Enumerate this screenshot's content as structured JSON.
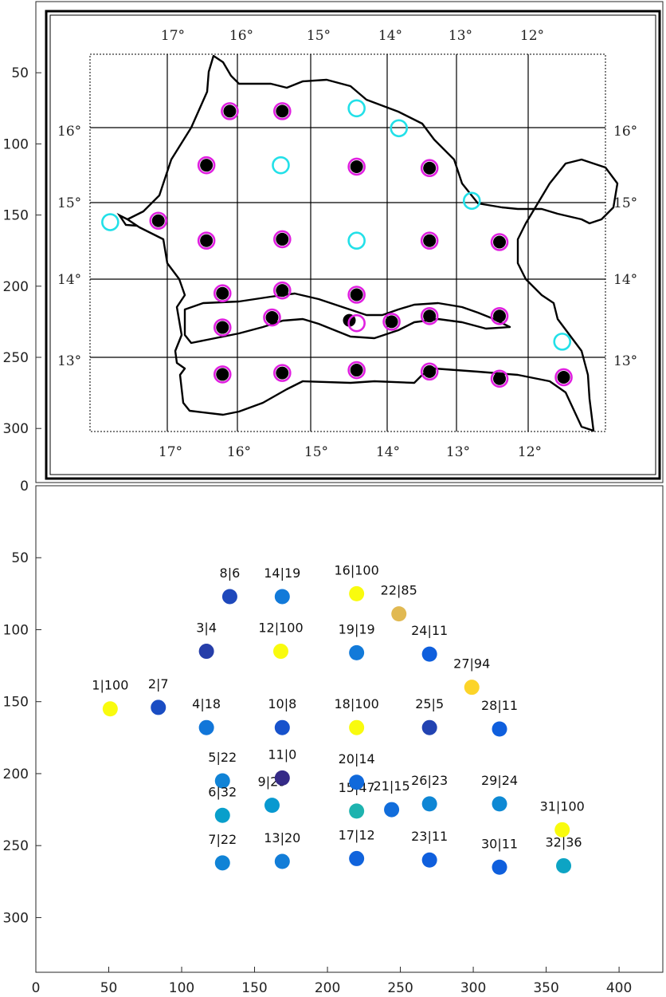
{
  "chart_data": [
    {
      "type": "scatter",
      "panel": "map-overlay",
      "xlim": [
        0,
        430
      ],
      "ylim": [
        0,
        338
      ],
      "y_reversed": true,
      "grid": false,
      "background": "map of Senegal with lat/lon graticule",
      "map_top_labels": [
        "17°",
        "16°",
        "15°",
        "14°",
        "13°",
        "12°"
      ],
      "map_bottom_labels": [
        "17°",
        "16°",
        "15°",
        "14°",
        "13°",
        "12°"
      ],
      "map_left_labels": [
        "16°",
        "15°",
        "14°",
        "13°"
      ],
      "map_right_labels": [
        "16°",
        "15°",
        "14°",
        "13°"
      ],
      "yticks": [
        50,
        100,
        150,
        200,
        250,
        300
      ],
      "colors": {
        "black_marker": "#000000",
        "magenta_ring": "#e020e0",
        "cyan_ring": "#22e0e8"
      },
      "black_points": [
        {
          "x": 133,
          "y": 77
        },
        {
          "x": 169,
          "y": 77
        },
        {
          "x": 117,
          "y": 115
        },
        {
          "x": 220,
          "y": 116
        },
        {
          "x": 270,
          "y": 117
        },
        {
          "x": 84,
          "y": 154
        },
        {
          "x": 117,
          "y": 168
        },
        {
          "x": 169,
          "y": 167
        },
        {
          "x": 270,
          "y": 168
        },
        {
          "x": 318,
          "y": 169
        },
        {
          "x": 128,
          "y": 205
        },
        {
          "x": 169,
          "y": 203
        },
        {
          "x": 220,
          "y": 206
        },
        {
          "x": 128,
          "y": 229
        },
        {
          "x": 162,
          "y": 222
        },
        {
          "x": 215,
          "y": 224
        },
        {
          "x": 244,
          "y": 225
        },
        {
          "x": 270,
          "y": 221
        },
        {
          "x": 318,
          "y": 221
        },
        {
          "x": 128,
          "y": 262
        },
        {
          "x": 169,
          "y": 261
        },
        {
          "x": 220,
          "y": 259
        },
        {
          "x": 270,
          "y": 260
        },
        {
          "x": 318,
          "y": 265
        },
        {
          "x": 362,
          "y": 264
        }
      ],
      "magenta_rings": [
        {
          "x": 133,
          "y": 77
        },
        {
          "x": 169,
          "y": 77
        },
        {
          "x": 117,
          "y": 115
        },
        {
          "x": 220,
          "y": 116
        },
        {
          "x": 270,
          "y": 117
        },
        {
          "x": 84,
          "y": 154
        },
        {
          "x": 117,
          "y": 168
        },
        {
          "x": 169,
          "y": 167
        },
        {
          "x": 270,
          "y": 168
        },
        {
          "x": 318,
          "y": 169
        },
        {
          "x": 128,
          "y": 205
        },
        {
          "x": 169,
          "y": 203
        },
        {
          "x": 220,
          "y": 206
        },
        {
          "x": 128,
          "y": 229
        },
        {
          "x": 162,
          "y": 222
        },
        {
          "x": 220,
          "y": 226
        },
        {
          "x": 244,
          "y": 225
        },
        {
          "x": 270,
          "y": 221
        },
        {
          "x": 318,
          "y": 221
        },
        {
          "x": 128,
          "y": 262
        },
        {
          "x": 169,
          "y": 261
        },
        {
          "x": 220,
          "y": 259
        },
        {
          "x": 270,
          "y": 260
        },
        {
          "x": 318,
          "y": 265
        },
        {
          "x": 362,
          "y": 264
        }
      ],
      "cyan_rings": [
        {
          "x": 220,
          "y": 75
        },
        {
          "x": 249,
          "y": 89
        },
        {
          "x": 168,
          "y": 115
        },
        {
          "x": 51,
          "y": 155
        },
        {
          "x": 299,
          "y": 140
        },
        {
          "x": 220,
          "y": 168
        },
        {
          "x": 361,
          "y": 239
        }
      ]
    },
    {
      "type": "scatter",
      "panel": "labeled-values",
      "xlim": [
        0,
        430
      ],
      "ylim": [
        0,
        338
      ],
      "y_reversed": true,
      "xticks": [
        0,
        50,
        100,
        150,
        200,
        250,
        300,
        350,
        400
      ],
      "yticks": [
        0,
        50,
        100,
        150,
        200,
        250,
        300
      ],
      "color_scale": "parula (dark blue = 0, yellow = 100)",
      "points": [
        {
          "label": "1|100",
          "id": 1,
          "value": 100,
          "x": 51,
          "y": 155
        },
        {
          "label": "2|7",
          "id": 2,
          "value": 7,
          "x": 84,
          "y": 154
        },
        {
          "label": "3|4",
          "id": 3,
          "value": 4,
          "x": 117,
          "y": 115
        },
        {
          "label": "4|18",
          "id": 4,
          "value": 18,
          "x": 117,
          "y": 168
        },
        {
          "label": "5|22",
          "id": 5,
          "value": 22,
          "x": 128,
          "y": 205
        },
        {
          "label": "6|32",
          "id": 6,
          "value": 32,
          "x": 128,
          "y": 229
        },
        {
          "label": "7|22",
          "id": 7,
          "value": 22,
          "x": 128,
          "y": 262
        },
        {
          "label": "8|6",
          "id": 8,
          "value": 6,
          "x": 133,
          "y": 77
        },
        {
          "label": "9|29",
          "id": 9,
          "value": 29,
          "x": 162,
          "y": 222
        },
        {
          "label": "10|8",
          "id": 10,
          "value": 8,
          "x": 169,
          "y": 168
        },
        {
          "label": "11|0",
          "id": 11,
          "value": 0,
          "x": 169,
          "y": 203
        },
        {
          "label": "12|100",
          "id": 12,
          "value": 100,
          "x": 168,
          "y": 115
        },
        {
          "label": "13|20",
          "id": 13,
          "value": 20,
          "x": 169,
          "y": 261
        },
        {
          "label": "14|19",
          "id": 14,
          "value": 19,
          "x": 169,
          "y": 77
        },
        {
          "label": "15|47",
          "id": 15,
          "value": 47,
          "x": 220,
          "y": 226
        },
        {
          "label": "16|100",
          "id": 16,
          "value": 100,
          "x": 220,
          "y": 75
        },
        {
          "label": "17|12",
          "id": 17,
          "value": 12,
          "x": 220,
          "y": 259
        },
        {
          "label": "18|100",
          "id": 18,
          "value": 100,
          "x": 220,
          "y": 168
        },
        {
          "label": "19|19",
          "id": 19,
          "value": 19,
          "x": 220,
          "y": 116
        },
        {
          "label": "20|14",
          "id": 20,
          "value": 14,
          "x": 220,
          "y": 206
        },
        {
          "label": "21|15",
          "id": 21,
          "value": 15,
          "x": 244,
          "y": 225
        },
        {
          "label": "22|85",
          "id": 22,
          "value": 85,
          "x": 249,
          "y": 89
        },
        {
          "label": "23|11",
          "id": 23,
          "value": 11,
          "x": 270,
          "y": 260
        },
        {
          "label": "24|11",
          "id": 24,
          "value": 11,
          "x": 270,
          "y": 117
        },
        {
          "label": "25|5",
          "id": 25,
          "value": 5,
          "x": 270,
          "y": 168
        },
        {
          "label": "26|23",
          "id": 26,
          "value": 23,
          "x": 270,
          "y": 221
        },
        {
          "label": "27|94",
          "id": 27,
          "value": 94,
          "x": 299,
          "y": 140
        },
        {
          "label": "28|11",
          "id": 28,
          "value": 11,
          "x": 318,
          "y": 169
        },
        {
          "label": "29|24",
          "id": 29,
          "value": 24,
          "x": 318,
          "y": 221
        },
        {
          "label": "30|11",
          "id": 30,
          "value": 11,
          "x": 318,
          "y": 265
        },
        {
          "label": "31|100",
          "id": 31,
          "value": 100,
          "x": 361,
          "y": 239
        },
        {
          "label": "32|36",
          "id": 32,
          "value": 36,
          "x": 362,
          "y": 264
        }
      ]
    }
  ]
}
